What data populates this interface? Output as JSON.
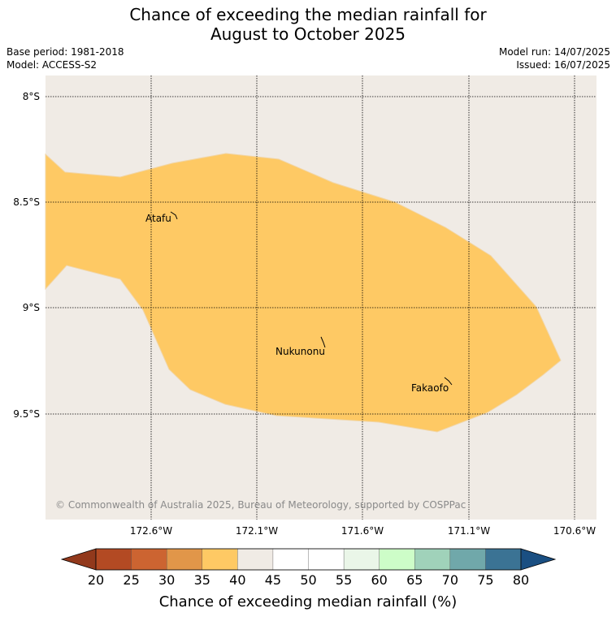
{
  "title": {
    "line1": "Chance of exceeding the median rainfall for",
    "line2": "August to October 2025"
  },
  "meta": {
    "base_period": "Base period: 1981-2018",
    "model": "Model: ACCESS-S2",
    "model_run": "Model run: 14/07/2025",
    "issued": "Issued: 16/07/2025"
  },
  "map": {
    "lat_labels": [
      "8°S",
      "8.5°S",
      "9°S",
      "9.5°S"
    ],
    "lon_labels": [
      "172.6°W",
      "172.1°W",
      "171.6°W",
      "171.1°W",
      "170.6°W"
    ],
    "places": [
      {
        "name": "Atafu",
        "lon": -172.52,
        "lat": -8.56
      },
      {
        "name": "Nukunonu",
        "lon": -171.85,
        "lat": -9.17
      },
      {
        "name": "Fakaofo",
        "lon": -171.23,
        "lat": -9.37
      }
    ],
    "forecast_region_category": "35-40",
    "copyright": "© Commonwealth of Australia 2025, Bureau of Meteorology, supported by COSPPac",
    "colors": {
      "background": "#f0ebe5",
      "region": "#fec964",
      "grid": "#000000"
    }
  },
  "colorbar": {
    "title": "Chance of exceeding median rainfall (%)",
    "ticks": [
      "20",
      "25",
      "30",
      "35",
      "40",
      "45",
      "50",
      "55",
      "60",
      "65",
      "70",
      "75",
      "80"
    ],
    "colors": [
      "#b34a23",
      "#cc6431",
      "#e19649",
      "#fec964",
      "#f0ebe5",
      "#ffffff",
      "#ffffff",
      "#eaf6e8",
      "#cdfdc8",
      "#a0d2ba",
      "#70a8aa",
      "#3b7394"
    ],
    "under_color": "#92391c",
    "over_color": "#1a4f82"
  }
}
